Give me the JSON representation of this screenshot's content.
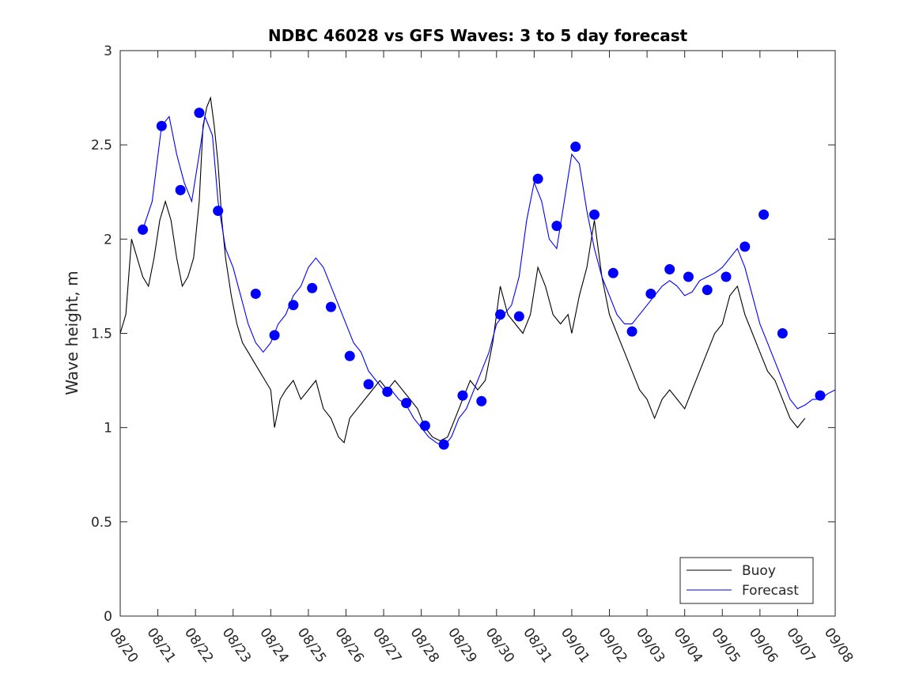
{
  "chart_data": {
    "type": "line",
    "title": "NDBC 46028 vs GFS Waves: 3 to 5 day forecast",
    "xlabel": "",
    "ylabel": "Wave height, m",
    "xlim": [
      0,
      19
    ],
    "ylim": [
      0,
      3
    ],
    "yticks": [
      0,
      0.5,
      1,
      1.5,
      2,
      2.5,
      3
    ],
    "yticklabels": [
      "0",
      "0.5",
      "1",
      "1.5",
      "2",
      "2.5",
      "3"
    ],
    "xticklabels": [
      "08/20",
      "08/21",
      "08/22",
      "08/23",
      "08/24",
      "08/25",
      "08/26",
      "08/27",
      "08/28",
      "08/29",
      "08/30",
      "08/31",
      "09/01",
      "09/02",
      "09/03",
      "09/04",
      "09/05",
      "09/06",
      "09/07",
      "09/08"
    ],
    "legend": {
      "position": "bottom-right",
      "entries": [
        {
          "label": "Buoy",
          "color": "#000000"
        },
        {
          "label": "Forecast",
          "color": "#0000ff"
        }
      ]
    },
    "series": [
      {
        "name": "Buoy",
        "color": "#000000",
        "points": [
          [
            0,
            1.5
          ],
          [
            0.15,
            1.6
          ],
          [
            0.3,
            2.0
          ],
          [
            0.45,
            1.9
          ],
          [
            0.6,
            1.8
          ],
          [
            0.75,
            1.75
          ],
          [
            0.9,
            1.9
          ],
          [
            1.05,
            2.1
          ],
          [
            1.2,
            2.2
          ],
          [
            1.35,
            2.1
          ],
          [
            1.5,
            1.9
          ],
          [
            1.65,
            1.75
          ],
          [
            1.8,
            1.8
          ],
          [
            1.95,
            1.9
          ],
          [
            2.1,
            2.2
          ],
          [
            2.2,
            2.6
          ],
          [
            2.3,
            2.7
          ],
          [
            2.4,
            2.75
          ],
          [
            2.5,
            2.6
          ],
          [
            2.6,
            2.4
          ],
          [
            2.7,
            2.1
          ],
          [
            2.8,
            1.9
          ],
          [
            2.95,
            1.7
          ],
          [
            3.1,
            1.55
          ],
          [
            3.25,
            1.45
          ],
          [
            3.4,
            1.4
          ],
          [
            3.55,
            1.35
          ],
          [
            3.7,
            1.3
          ],
          [
            3.85,
            1.25
          ],
          [
            4.0,
            1.2
          ],
          [
            4.1,
            1.0
          ],
          [
            4.25,
            1.15
          ],
          [
            4.4,
            1.2
          ],
          [
            4.6,
            1.25
          ],
          [
            4.8,
            1.15
          ],
          [
            5.0,
            1.2
          ],
          [
            5.2,
            1.25
          ],
          [
            5.4,
            1.1
          ],
          [
            5.6,
            1.05
          ],
          [
            5.8,
            0.95
          ],
          [
            5.95,
            0.92
          ],
          [
            6.1,
            1.05
          ],
          [
            6.3,
            1.1
          ],
          [
            6.5,
            1.15
          ],
          [
            6.7,
            1.2
          ],
          [
            6.9,
            1.25
          ],
          [
            7.1,
            1.2
          ],
          [
            7.3,
            1.25
          ],
          [
            7.5,
            1.2
          ],
          [
            7.7,
            1.15
          ],
          [
            7.9,
            1.1
          ],
          [
            8.1,
            1.0
          ],
          [
            8.3,
            0.95
          ],
          [
            8.5,
            0.93
          ],
          [
            8.7,
            0.95
          ],
          [
            8.9,
            1.05
          ],
          [
            9.1,
            1.15
          ],
          [
            9.3,
            1.25
          ],
          [
            9.5,
            1.2
          ],
          [
            9.7,
            1.25
          ],
          [
            9.9,
            1.45
          ],
          [
            10.1,
            1.75
          ],
          [
            10.3,
            1.6
          ],
          [
            10.5,
            1.55
          ],
          [
            10.7,
            1.5
          ],
          [
            10.9,
            1.6
          ],
          [
            11.1,
            1.85
          ],
          [
            11.3,
            1.75
          ],
          [
            11.5,
            1.6
          ],
          [
            11.7,
            1.55
          ],
          [
            11.9,
            1.6
          ],
          [
            12.0,
            1.5
          ],
          [
            12.2,
            1.7
          ],
          [
            12.4,
            1.85
          ],
          [
            12.6,
            2.1
          ],
          [
            12.8,
            1.8
          ],
          [
            13.0,
            1.6
          ],
          [
            13.2,
            1.5
          ],
          [
            13.4,
            1.4
          ],
          [
            13.6,
            1.3
          ],
          [
            13.8,
            1.2
          ],
          [
            14.0,
            1.15
          ],
          [
            14.2,
            1.05
          ],
          [
            14.4,
            1.15
          ],
          [
            14.6,
            1.2
          ],
          [
            14.8,
            1.15
          ],
          [
            15.0,
            1.1
          ],
          [
            15.2,
            1.2
          ],
          [
            15.4,
            1.3
          ],
          [
            15.6,
            1.4
          ],
          [
            15.8,
            1.5
          ],
          [
            16.0,
            1.55
          ],
          [
            16.2,
            1.7
          ],
          [
            16.4,
            1.75
          ],
          [
            16.6,
            1.6
          ],
          [
            16.8,
            1.5
          ],
          [
            17.0,
            1.4
          ],
          [
            17.2,
            1.3
          ],
          [
            17.4,
            1.25
          ],
          [
            17.6,
            1.15
          ],
          [
            17.8,
            1.05
          ],
          [
            18.0,
            1.0
          ],
          [
            18.2,
            1.05
          ]
        ]
      },
      {
        "name": "Forecast",
        "color": "#0000ff",
        "points": [
          [
            0.6,
            2.05
          ],
          [
            0.85,
            2.2
          ],
          [
            1.1,
            2.6
          ],
          [
            1.3,
            2.65
          ],
          [
            1.5,
            2.45
          ],
          [
            1.7,
            2.3
          ],
          [
            1.9,
            2.2
          ],
          [
            2.1,
            2.45
          ],
          [
            2.25,
            2.65
          ],
          [
            2.45,
            2.55
          ],
          [
            2.6,
            2.2
          ],
          [
            2.8,
            1.95
          ],
          [
            3.0,
            1.85
          ],
          [
            3.2,
            1.7
          ],
          [
            3.4,
            1.55
          ],
          [
            3.6,
            1.45
          ],
          [
            3.8,
            1.4
          ],
          [
            4.0,
            1.45
          ],
          [
            4.2,
            1.55
          ],
          [
            4.4,
            1.6
          ],
          [
            4.6,
            1.7
          ],
          [
            4.8,
            1.75
          ],
          [
            5.0,
            1.85
          ],
          [
            5.2,
            1.9
          ],
          [
            5.4,
            1.85
          ],
          [
            5.6,
            1.75
          ],
          [
            5.8,
            1.65
          ],
          [
            6.0,
            1.55
          ],
          [
            6.2,
            1.45
          ],
          [
            6.4,
            1.4
          ],
          [
            6.6,
            1.3
          ],
          [
            6.8,
            1.25
          ],
          [
            7.0,
            1.2
          ],
          [
            7.2,
            1.2
          ],
          [
            7.4,
            1.15
          ],
          [
            7.6,
            1.12
          ],
          [
            7.8,
            1.05
          ],
          [
            8.0,
            1.0
          ],
          [
            8.2,
            0.95
          ],
          [
            8.4,
            0.92
          ],
          [
            8.6,
            0.9
          ],
          [
            8.8,
            0.95
          ],
          [
            9.0,
            1.05
          ],
          [
            9.2,
            1.1
          ],
          [
            9.4,
            1.2
          ],
          [
            9.6,
            1.3
          ],
          [
            9.8,
            1.4
          ],
          [
            10.0,
            1.55
          ],
          [
            10.2,
            1.6
          ],
          [
            10.4,
            1.65
          ],
          [
            10.6,
            1.8
          ],
          [
            10.8,
            2.1
          ],
          [
            11.0,
            2.3
          ],
          [
            11.2,
            2.2
          ],
          [
            11.4,
            2.0
          ],
          [
            11.6,
            1.95
          ],
          [
            11.8,
            2.2
          ],
          [
            12.0,
            2.45
          ],
          [
            12.2,
            2.4
          ],
          [
            12.4,
            2.15
          ],
          [
            12.6,
            1.95
          ],
          [
            12.8,
            1.8
          ],
          [
            13.0,
            1.7
          ],
          [
            13.2,
            1.6
          ],
          [
            13.4,
            1.55
          ],
          [
            13.6,
            1.55
          ],
          [
            13.8,
            1.6
          ],
          [
            14.0,
            1.65
          ],
          [
            14.2,
            1.7
          ],
          [
            14.4,
            1.75
          ],
          [
            14.6,
            1.78
          ],
          [
            14.8,
            1.75
          ],
          [
            15.0,
            1.7
          ],
          [
            15.2,
            1.72
          ],
          [
            15.4,
            1.78
          ],
          [
            15.6,
            1.8
          ],
          [
            15.8,
            1.82
          ],
          [
            16.0,
            1.85
          ],
          [
            16.2,
            1.9
          ],
          [
            16.4,
            1.95
          ],
          [
            16.6,
            1.85
          ],
          [
            16.8,
            1.7
          ],
          [
            17.0,
            1.55
          ],
          [
            17.2,
            1.45
          ],
          [
            17.4,
            1.35
          ],
          [
            17.6,
            1.25
          ],
          [
            17.8,
            1.15
          ],
          [
            18.0,
            1.1
          ],
          [
            18.2,
            1.12
          ],
          [
            18.4,
            1.15
          ],
          [
            18.6,
            1.15
          ],
          [
            18.8,
            1.18
          ],
          [
            19.0,
            1.2
          ]
        ]
      }
    ],
    "forecast_markers": {
      "x": [
        0.6,
        1.1,
        1.6,
        2.1,
        2.6,
        3.6,
        4.1,
        4.6,
        5.1,
        5.6,
        6.1,
        6.6,
        7.1,
        7.6,
        8.1,
        8.6,
        9.1,
        9.6,
        10.1,
        10.6,
        11.1,
        11.6,
        12.1,
        12.6,
        13.1,
        13.6,
        14.1,
        14.6,
        15.1,
        15.6,
        16.1,
        16.6,
        17.1,
        17.6,
        18.6
      ],
      "y": [
        2.05,
        2.6,
        2.26,
        2.67,
        2.15,
        1.71,
        1.49,
        1.65,
        1.74,
        1.64,
        1.38,
        1.23,
        1.19,
        1.13,
        1.01,
        0.91,
        1.17,
        1.14,
        1.6,
        1.59,
        2.32,
        2.07,
        2.49,
        2.13,
        1.82,
        1.51,
        1.71,
        1.84,
        1.8,
        1.73,
        1.8,
        1.96,
        2.13,
        1.5,
        1.17
      ]
    }
  }
}
